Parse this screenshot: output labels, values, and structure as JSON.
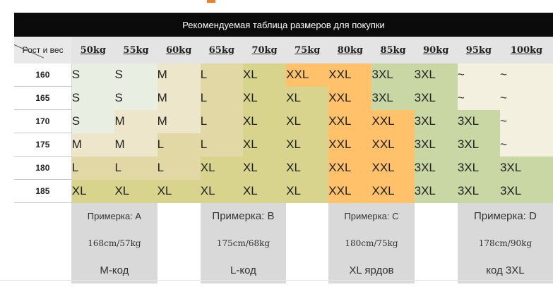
{
  "title": "Рекомендуемая таблица размеров для покупки",
  "corner_label": "Рост и вес",
  "weights": [
    "50kg",
    "55kg",
    "60kg",
    "65kg",
    "70kg",
    "75kg",
    "80kg",
    "85kg",
    "90kg",
    "95kg",
    "100kg"
  ],
  "rows": [
    {
      "height": "160",
      "sizes": [
        "S",
        "S",
        "M",
        "L",
        "XL",
        "XXL",
        "XXL",
        "3XL",
        "3XL",
        "~",
        "~"
      ]
    },
    {
      "height": "165",
      "sizes": [
        "S",
        "S",
        "M",
        "L",
        "XL",
        "XL",
        "XXL",
        "3XL",
        "3XL",
        "~",
        "~"
      ]
    },
    {
      "height": "170",
      "sizes": [
        "S",
        "M",
        "M",
        "L",
        "XL",
        "XL",
        "XXL",
        "XXL",
        "3XL",
        "3XL",
        "~"
      ]
    },
    {
      "height": "175",
      "sizes": [
        "M",
        "M",
        "L",
        "L",
        "XL",
        "XL",
        "XXL",
        "XXL",
        "3XL",
        "3XL",
        "~"
      ]
    },
    {
      "height": "180",
      "sizes": [
        "L",
        "L",
        "L",
        "XL",
        "XL",
        "XL",
        "XXL",
        "XXL",
        "3XL",
        "3XL",
        "3XL"
      ]
    },
    {
      "height": "185",
      "sizes": [
        "XL",
        "XL",
        "XL",
        "XL",
        "XL",
        "XL",
        "XXL",
        "XXL",
        "3XL",
        "3XL",
        "3XL"
      ]
    }
  ],
  "size_colors": {
    "S": "#e9eee3",
    "M": "#ede6cb",
    "L": "#e2d8a6",
    "XL": "#d8d48d",
    "XXL": "#ffc26b",
    "3XL": "#c9d7a5",
    "~": "#f3f0df"
  },
  "fittings": [
    {
      "label": "Примерка: A",
      "measure": "168cm/57kg",
      "code": "M-код"
    },
    {
      "label": "Примерка: B",
      "measure": "175cm/68kg",
      "code": "L-код"
    },
    {
      "label": "Примерка: C",
      "measure": "180cm/75kg",
      "code": "XL ярдов"
    },
    {
      "label": "Примерка: D",
      "measure": "178cm/90kg",
      "code": "код 3XL"
    }
  ]
}
